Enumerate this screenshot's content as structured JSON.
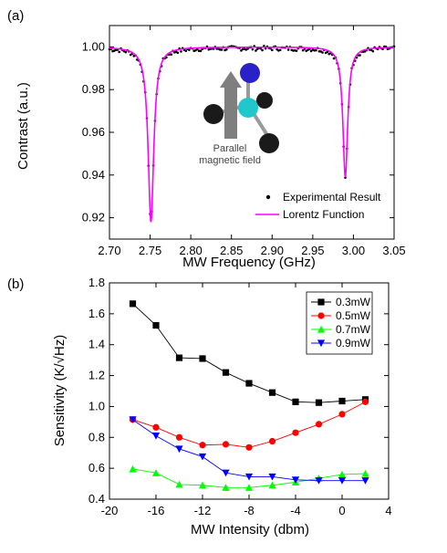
{
  "chart_data": [
    {
      "panel_label": "(a)",
      "type": "scatter",
      "xlabel": "MW Frequency (GHz)",
      "ylabel": "Contrast (a.u.)",
      "xlim": [
        2.7,
        3.05
      ],
      "ylim": [
        0.91,
        1.01
      ],
      "xticks": [
        "2.70",
        "2.75",
        "2.80",
        "2.85",
        "2.90",
        "2.95",
        "3.00",
        "3.05"
      ],
      "yticks": [
        "0.92",
        "0.94",
        "0.96",
        "0.98",
        "1.00"
      ],
      "series": [
        {
          "name": "Experimental Result",
          "style": "dots",
          "color": "#000000",
          "lorentz_dips": [
            {
              "center": 2.751,
              "depth": 0.082,
              "hwhm": 0.0042
            },
            {
              "center": 2.99,
              "depth": 0.061,
              "hwhm": 0.0036
            }
          ],
          "baseline": 0.9995,
          "x_step": 0.002
        },
        {
          "name": "Lorentz Function",
          "style": "line",
          "color": "#ff00ff",
          "lorentz_dips": [
            {
              "center": 2.751,
              "depth": 0.082,
              "hwhm": 0.0042
            },
            {
              "center": 2.99,
              "depth": 0.061,
              "hwhm": 0.0036
            }
          ],
          "baseline": 1.0
        }
      ],
      "inset_text": [
        "Parallel",
        "magnetic field"
      ],
      "legend_position": "bottom-right"
    },
    {
      "panel_label": "(b)",
      "type": "line",
      "xlabel": "MW Intensity (dbm)",
      "ylabel": "Sensitivity (K/√Hz)",
      "xlim": [
        -20,
        4
      ],
      "ylim": [
        0.4,
        1.8
      ],
      "xticks": [
        "-20",
        "-16",
        "-12",
        "-8",
        "-4",
        "0",
        "4"
      ],
      "yticks": [
        "0.4",
        "0.6",
        "0.8",
        "1.0",
        "1.2",
        "1.4",
        "1.6",
        "1.8"
      ],
      "x": [
        -18,
        -16,
        -14,
        -12,
        -10,
        -8,
        -6,
        -4,
        -2,
        0,
        2
      ],
      "series": [
        {
          "name": "0.3mW",
          "color": "#000000",
          "marker": "square",
          "values": [
            1.665,
            1.525,
            1.315,
            1.31,
            1.22,
            1.15,
            1.09,
            1.03,
            1.025,
            1.035,
            1.045
          ]
        },
        {
          "name": "0.5mW",
          "color": "#ff0000",
          "marker": "circle",
          "values": [
            0.915,
            0.865,
            0.8,
            0.75,
            0.755,
            0.735,
            0.775,
            0.83,
            0.885,
            0.95,
            1.03
          ]
        },
        {
          "name": "0.7mW",
          "color": "#00ff00",
          "marker": "triangle-up",
          "values": [
            0.595,
            0.57,
            0.495,
            0.49,
            0.475,
            0.475,
            0.49,
            0.51,
            0.535,
            0.56,
            0.565
          ]
        },
        {
          "name": "0.9mW",
          "color": "#0000ff",
          "marker": "triangle-down",
          "values": [
            0.915,
            0.81,
            0.725,
            0.675,
            0.57,
            0.545,
            0.545,
            0.525,
            0.52,
            0.52,
            0.52
          ]
        }
      ],
      "legend_position": "top-right"
    }
  ]
}
